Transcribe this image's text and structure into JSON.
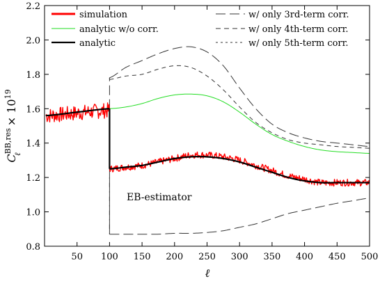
{
  "chart_data": {
    "type": "line",
    "xlabel": "ℓ",
    "ylabel": "C_ℓ^{BB,res} × 10^19",
    "ylabel_parts": {
      "base": "C",
      "sub": "ℓ",
      "sup": "BB,res",
      "times": "× 10",
      "exp": "19"
    },
    "xlim": [
      0,
      500
    ],
    "ylim": [
      0.8,
      2.2
    ],
    "xticks": [
      50,
      100,
      150,
      200,
      250,
      300,
      350,
      400,
      450,
      500
    ],
    "yticks": [
      0.8,
      1.0,
      1.2,
      1.4,
      1.6,
      1.8,
      2.0,
      2.2
    ],
    "ytick_labels": [
      "0.8",
      "1.0",
      "1.2",
      "1.4",
      "1.6",
      "1.8",
      "2.0",
      "2.2"
    ],
    "grid": false,
    "legend_position": "top",
    "annotation": "EB-estimator",
    "series": [
      {
        "name": "simulation",
        "color": "#ff0000",
        "style": "noisy-solid",
        "x": [
          2,
          100,
          100,
          125,
          150,
          175,
          200,
          225,
          250,
          275,
          300,
          325,
          350,
          375,
          400,
          425,
          450,
          475,
          500
        ],
        "y": [
          1.56,
          1.59,
          1.25,
          1.26,
          1.27,
          1.29,
          1.31,
          1.33,
          1.33,
          1.32,
          1.3,
          1.27,
          1.24,
          1.21,
          1.19,
          1.17,
          1.17,
          1.17,
          1.17
        ]
      },
      {
        "name": "analytic w/o corr.",
        "color": "#22dd22",
        "style": "solid",
        "x": [
          100,
          125,
          150,
          175,
          200,
          225,
          250,
          275,
          300,
          325,
          350,
          375,
          400,
          425,
          450,
          475,
          500
        ],
        "y": [
          1.6,
          1.61,
          1.63,
          1.66,
          1.68,
          1.685,
          1.675,
          1.64,
          1.58,
          1.51,
          1.45,
          1.41,
          1.38,
          1.36,
          1.35,
          1.345,
          1.34
        ]
      },
      {
        "name": "analytic",
        "color": "#000000",
        "style": "thick-solid",
        "x": [
          2,
          50,
          100,
          100,
          125,
          150,
          175,
          200,
          225,
          250,
          275,
          300,
          325,
          350,
          375,
          400,
          425,
          450,
          475,
          500
        ],
        "y": [
          1.56,
          1.58,
          1.6,
          1.25,
          1.26,
          1.27,
          1.29,
          1.31,
          1.32,
          1.32,
          1.31,
          1.29,
          1.26,
          1.23,
          1.2,
          1.18,
          1.17,
          1.17,
          1.17,
          1.17
        ]
      },
      {
        "name": "w/ only 3rd-term corr.",
        "color": "#333333",
        "style": "long-dash",
        "x": [
          100,
          100,
          125,
          150,
          175,
          200,
          225,
          250,
          275,
          300,
          325,
          350,
          375,
          400,
          425,
          450,
          475,
          500
        ],
        "y": [
          0.87,
          1.78,
          1.84,
          1.88,
          1.92,
          1.95,
          1.96,
          1.93,
          1.85,
          1.72,
          1.6,
          1.51,
          1.46,
          1.43,
          1.41,
          1.4,
          1.39,
          1.38
        ]
      },
      {
        "name": "w/ only 4th-term corr.",
        "color": "#333333",
        "style": "medium-dash",
        "x": [
          100,
          100,
          125,
          150,
          175,
          200,
          225,
          250,
          275,
          300,
          325,
          350,
          375,
          400,
          425,
          450,
          475,
          500
        ],
        "y": [
          1.78,
          1.77,
          1.79,
          1.8,
          1.83,
          1.85,
          1.84,
          1.79,
          1.71,
          1.61,
          1.52,
          1.46,
          1.42,
          1.4,
          1.39,
          1.38,
          1.375,
          1.37
        ]
      },
      {
        "name": "w/ only 5th-term corr.",
        "color": "#333333",
        "style": "long-dash-lower",
        "x": [
          100,
          100,
          125,
          150,
          175,
          200,
          225,
          250,
          275,
          300,
          325,
          350,
          375,
          400,
          425,
          450,
          475,
          500
        ],
        "y": [
          1.2,
          0.87,
          0.87,
          0.87,
          0.87,
          0.875,
          0.875,
          0.88,
          0.89,
          0.91,
          0.93,
          0.96,
          0.99,
          1.01,
          1.03,
          1.05,
          1.065,
          1.08
        ]
      }
    ]
  }
}
